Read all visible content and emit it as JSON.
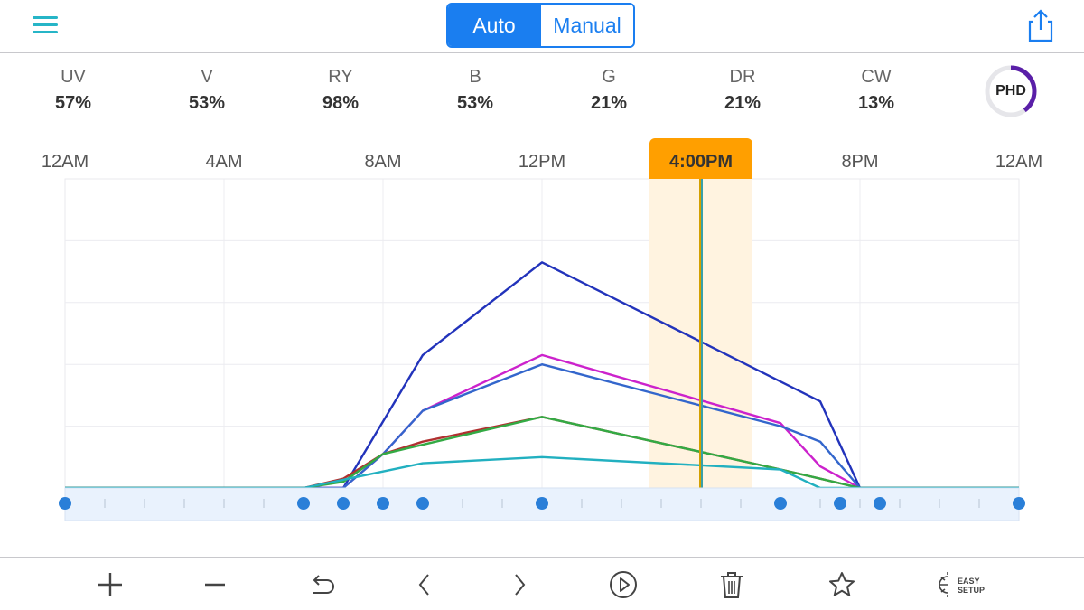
{
  "header": {
    "mode_auto": "Auto",
    "mode_manual": "Manual",
    "active_mode": "Auto",
    "menu_icon": "hamburger-menu-icon",
    "share_icon": "share-icon"
  },
  "channels": [
    {
      "name": "UV",
      "value": "57%"
    },
    {
      "name": "V",
      "value": "53%"
    },
    {
      "name": "RY",
      "value": "98%"
    },
    {
      "name": "B",
      "value": "53%"
    },
    {
      "name": "G",
      "value": "21%"
    },
    {
      "name": "DR",
      "value": "21%"
    },
    {
      "name": "CW",
      "value": "13%"
    }
  ],
  "phd": {
    "label": "PHD",
    "progress": 0.4,
    "color": "#5a1fa8"
  },
  "timeline": {
    "tick_labels": [
      "12AM",
      "4AM",
      "8AM",
      "12PM",
      "8PM",
      "12AM"
    ],
    "current_time": "4:00PM",
    "current_hour": 16,
    "highlight_color": "#ff9f00"
  },
  "chart_data": {
    "type": "line",
    "x_unit": "hour",
    "xlim": [
      0,
      24
    ],
    "ylim": [
      0,
      100
    ],
    "series": [
      {
        "color": "#2233bb",
        "points": [
          [
            0,
            0
          ],
          [
            7,
            0
          ],
          [
            9,
            43
          ],
          [
            12,
            73
          ],
          [
            19,
            28
          ],
          [
            20,
            0
          ],
          [
            24,
            0
          ]
        ]
      },
      {
        "color": "#cc22cc",
        "points": [
          [
            0,
            0
          ],
          [
            7,
            0
          ],
          [
            8,
            11
          ],
          [
            9,
            25
          ],
          [
            12,
            43
          ],
          [
            18,
            21
          ],
          [
            19,
            7
          ],
          [
            20,
            0
          ],
          [
            24,
            0
          ]
        ]
      },
      {
        "color": "#3366cc",
        "points": [
          [
            0,
            0
          ],
          [
            7,
            0
          ],
          [
            8,
            11
          ],
          [
            9,
            25
          ],
          [
            12,
            40
          ],
          [
            18,
            20
          ],
          [
            19,
            15
          ],
          [
            20,
            0
          ],
          [
            24,
            0
          ]
        ]
      },
      {
        "color": "#b03030",
        "points": [
          [
            0,
            0
          ],
          [
            6,
            0
          ],
          [
            7,
            3
          ],
          [
            8,
            11
          ],
          [
            9,
            15
          ],
          [
            12,
            23
          ],
          [
            18,
            6
          ],
          [
            19,
            3
          ],
          [
            20,
            0
          ],
          [
            24,
            0
          ]
        ]
      },
      {
        "color": "#33aa44",
        "points": [
          [
            0,
            0
          ],
          [
            6,
            0
          ],
          [
            7,
            2
          ],
          [
            8,
            11
          ],
          [
            9,
            14
          ],
          [
            12,
            23
          ],
          [
            18,
            6
          ],
          [
            19,
            3
          ],
          [
            20,
            0
          ],
          [
            24,
            0
          ]
        ]
      },
      {
        "color": "#22b0c0",
        "points": [
          [
            0,
            0
          ],
          [
            6,
            0
          ],
          [
            9,
            8
          ],
          [
            12,
            10
          ],
          [
            18,
            6
          ],
          [
            19,
            0
          ],
          [
            24,
            0
          ]
        ]
      }
    ],
    "keyframes": [
      0,
      6,
      7,
      8,
      9,
      12,
      18,
      19.5,
      20.5,
      24
    ],
    "keyframe_color": "#2a7fd8"
  },
  "toolbar": {
    "add": "add-icon",
    "remove": "remove-icon",
    "undo": "undo-icon",
    "prev": "chevron-left-icon",
    "next": "chevron-right-icon",
    "play": "play-icon",
    "delete": "trash-icon",
    "favorite": "star-icon",
    "easy_setup_line1": "EASY",
    "easy_setup_line2": "SETUP"
  }
}
